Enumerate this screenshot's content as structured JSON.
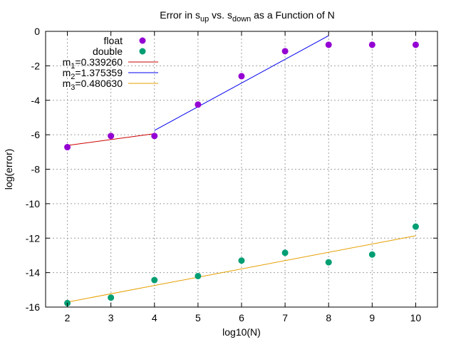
{
  "chart_data": {
    "type": "scatter",
    "title": {
      "pre": "Error in s",
      "sub1": "up",
      "mid": " vs. s",
      "sub2": "down",
      "post": " as a Function of N"
    },
    "xlabel": "log10(N)",
    "ylabel": "log(error)",
    "xlim": [
      1.5,
      10.5
    ],
    "ylim": [
      -16,
      0
    ],
    "xticks": [
      2,
      3,
      4,
      5,
      6,
      7,
      8,
      9,
      10
    ],
    "yticks": [
      0,
      -2,
      -4,
      -6,
      -8,
      -10,
      -12,
      -14,
      -16
    ],
    "grid": true,
    "legend_position": "top-left",
    "series": [
      {
        "name": "float",
        "type": "scatter",
        "color": "#9400d3",
        "x": [
          2,
          3,
          4,
          5,
          6,
          7,
          8,
          9,
          10
        ],
        "y": [
          -6.72,
          -6.07,
          -6.07,
          -4.25,
          -2.6,
          -1.15,
          -0.78,
          -0.78,
          -0.78
        ]
      },
      {
        "name": "double",
        "type": "scatter",
        "color": "#009e73",
        "x": [
          2,
          3,
          4,
          5,
          6,
          7,
          8,
          9,
          10
        ],
        "y": [
          -15.77,
          -15.45,
          -14.43,
          -14.2,
          -13.3,
          -12.85,
          -13.4,
          -12.95,
          -11.33
        ]
      },
      {
        "name": "m1=0.339260",
        "label_base": "m",
        "label_sub": "1",
        "label_rest": "=0.339260",
        "type": "line",
        "color": "#cc0000",
        "x": [
          2,
          4
        ],
        "y": [
          -6.62,
          -5.94
        ]
      },
      {
        "name": "m2=1.375359",
        "label_base": "m",
        "label_sub": "2",
        "label_rest": "=1.375359",
        "type": "line",
        "color": "#0000ee",
        "x": [
          4,
          8
        ],
        "y": [
          -5.75,
          -0.25
        ]
      },
      {
        "name": "m3=0.480630",
        "label_base": "m",
        "label_sub": "3",
        "label_rest": "=0.480630",
        "type": "line",
        "color": "#e69f00",
        "x": [
          2,
          10
        ],
        "y": [
          -15.71,
          -11.86
        ]
      }
    ]
  }
}
